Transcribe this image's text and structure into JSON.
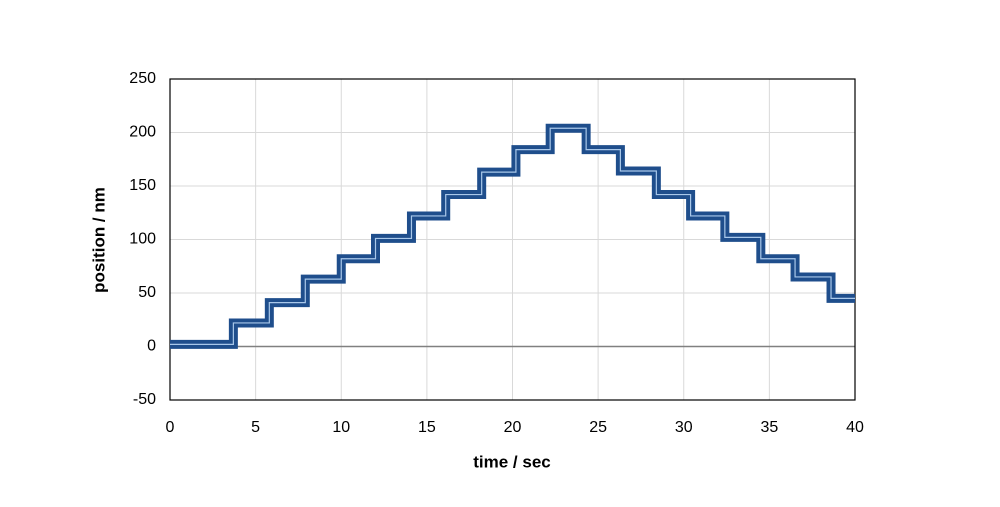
{
  "chart_data": {
    "type": "line",
    "xlabel": "time / sec",
    "ylabel": "position / nm",
    "xlim": [
      0,
      40
    ],
    "xticks": [
      0,
      5,
      10,
      15,
      20,
      25,
      30,
      35,
      40
    ],
    "ylim": [
      -50,
      250
    ],
    "yticks": [
      -50,
      0,
      50,
      100,
      150,
      200,
      250
    ],
    "grid": true,
    "series": [
      {
        "color": "#1f4e8c",
        "x": [
          0,
          3.7,
          3.7,
          5.8,
          5.8,
          7.9,
          7.9,
          10,
          10,
          12,
          12,
          14.1,
          14.1,
          16.1,
          16.1,
          18.2,
          18.2,
          20.2,
          20.2,
          22.2,
          22.2,
          24.3,
          24.3,
          26.3,
          26.3,
          28.4,
          28.4,
          30.4,
          30.4,
          32.4,
          32.4,
          34.5,
          34.5,
          36.5,
          36.5,
          38.6,
          38.6,
          40
        ],
        "values": [
          2,
          2,
          22,
          22,
          41,
          41,
          63,
          63,
          82,
          82,
          101,
          101,
          122,
          122,
          142,
          142,
          163,
          163,
          184,
          184,
          204,
          204,
          184,
          184,
          164,
          164,
          142,
          142,
          122,
          122,
          102,
          102,
          82,
          82,
          65,
          65,
          45,
          45
        ]
      }
    ]
  }
}
